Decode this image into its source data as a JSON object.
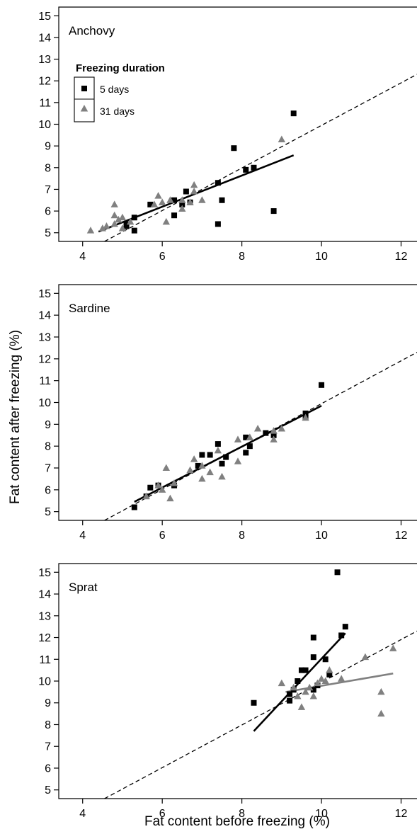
{
  "chart_data": {
    "type": "scatter",
    "ylabel": "Fat content after freezing (%)",
    "xlabel": "Fat content before freezing (%)",
    "xlim": [
      3.4,
      12.4
    ],
    "ylim": [
      4.6,
      15.4
    ],
    "x_ticks": [
      4,
      6,
      8,
      10,
      12
    ],
    "y_ticks": [
      5,
      6,
      7,
      8,
      9,
      10,
      11,
      12,
      13,
      14,
      15
    ],
    "colors": {
      "day5": "#000000",
      "day31": "#808080"
    },
    "legend": {
      "title": "Freezing duration",
      "entries": [
        {
          "label": "5 days",
          "marker": "square",
          "color": "#000000"
        },
        {
          "label": "31 days",
          "marker": "triangle",
          "color": "#808080"
        }
      ]
    },
    "panels": [
      {
        "title": "Anchovy",
        "series": [
          {
            "name": "5 days",
            "points": [
              [
                5.1,
                5.4
              ],
              [
                5.1,
                5.3
              ],
              [
                5.3,
                5.7
              ],
              [
                5.3,
                5.1
              ],
              [
                5.7,
                6.3
              ],
              [
                6.3,
                5.8
              ],
              [
                6.3,
                6.5
              ],
              [
                6.5,
                6.3
              ],
              [
                6.6,
                6.9
              ],
              [
                6.7,
                6.4
              ],
              [
                7.4,
                7.3
              ],
              [
                7.4,
                5.4
              ],
              [
                7.5,
                6.5
              ],
              [
                7.8,
                8.9
              ],
              [
                8.1,
                7.9
              ],
              [
                8.3,
                8.0
              ],
              [
                8.8,
                6.0
              ],
              [
                9.3,
                10.5
              ]
            ]
          },
          {
            "name": "31 days",
            "points": [
              [
                4.2,
                5.1
              ],
              [
                4.5,
                5.2
              ],
              [
                4.6,
                5.3
              ],
              [
                4.8,
                5.4
              ],
              [
                4.8,
                5.8
              ],
              [
                4.8,
                6.3
              ],
              [
                4.9,
                5.6
              ],
              [
                5.0,
                5.7
              ],
              [
                5.0,
                5.2
              ],
              [
                5.2,
                5.5
              ],
              [
                5.8,
                6.3
              ],
              [
                5.9,
                6.7
              ],
              [
                6.0,
                6.4
              ],
              [
                6.1,
                5.5
              ],
              [
                6.2,
                6.5
              ],
              [
                6.5,
                6.1
              ],
              [
                6.5,
                6.5
              ],
              [
                6.7,
                6.4
              ],
              [
                6.8,
                6.9
              ],
              [
                6.8,
                7.2
              ],
              [
                7.0,
                6.5
              ],
              [
                9.0,
                9.3
              ]
            ]
          }
        ],
        "fit_lines": [
          {
            "series": "5 days",
            "x": [
              4.4,
              9.3
            ],
            "y": [
              5.05,
              8.57
            ]
          }
        ],
        "reference_line": {
          "x": [
            4.55,
            12.4
          ],
          "y": [
            4.6,
            12.3
          ]
        }
      },
      {
        "title": "Sardine",
        "series": [
          {
            "name": "5 days",
            "points": [
              [
                5.3,
                5.2
              ],
              [
                5.6,
                5.7
              ],
              [
                5.7,
                6.1
              ],
              [
                5.9,
                6.2
              ],
              [
                6.3,
                6.2
              ],
              [
                6.9,
                7.1
              ],
              [
                7.0,
                7.6
              ],
              [
                7.2,
                7.6
              ],
              [
                7.4,
                8.1
              ],
              [
                7.5,
                7.2
              ],
              [
                7.6,
                7.5
              ],
              [
                8.1,
                7.7
              ],
              [
                8.1,
                8.4
              ],
              [
                8.2,
                8.0
              ],
              [
                8.6,
                8.6
              ],
              [
                8.8,
                8.5
              ],
              [
                9.6,
                9.3
              ],
              [
                9.6,
                9.5
              ],
              [
                10.0,
                10.8
              ]
            ]
          },
          {
            "name": "31 days",
            "points": [
              [
                5.6,
                5.7
              ],
              [
                5.9,
                6.2
              ],
              [
                6.0,
                6.0
              ],
              [
                6.1,
                7.0
              ],
              [
                6.2,
                5.6
              ],
              [
                6.3,
                6.3
              ],
              [
                6.7,
                6.9
              ],
              [
                6.8,
                7.4
              ],
              [
                7.0,
                6.5
              ],
              [
                7.0,
                7.1
              ],
              [
                7.2,
                6.8
              ],
              [
                7.4,
                7.8
              ],
              [
                7.5,
                6.6
              ],
              [
                7.9,
                7.3
              ],
              [
                7.9,
                8.3
              ],
              [
                8.2,
                8.4
              ],
              [
                8.4,
                8.8
              ],
              [
                8.8,
                8.3
              ],
              [
                8.8,
                8.7
              ],
              [
                9.0,
                8.8
              ],
              [
                9.6,
                9.3
              ]
            ]
          }
        ],
        "fit_lines": [
          {
            "series": "5 days",
            "x": [
              5.3,
              10.0
            ],
            "y": [
              5.45,
              9.85
            ]
          }
        ],
        "reference_line": {
          "x": [
            4.55,
            12.4
          ],
          "y": [
            4.6,
            12.3
          ]
        }
      },
      {
        "title": "Sprat",
        "series": [
          {
            "name": "5 days",
            "points": [
              [
                8.3,
                9.0
              ],
              [
                9.2,
                9.1
              ],
              [
                9.2,
                9.4
              ],
              [
                9.3,
                9.6
              ],
              [
                9.4,
                10.0
              ],
              [
                9.5,
                10.5
              ],
              [
                9.6,
                10.5
              ],
              [
                9.8,
                11.1
              ],
              [
                9.8,
                12.0
              ],
              [
                9.8,
                9.6
              ],
              [
                9.9,
                9.8
              ],
              [
                10.1,
                11.0
              ],
              [
                10.2,
                10.3
              ],
              [
                10.4,
                15.0
              ],
              [
                10.5,
                12.1
              ],
              [
                10.6,
                12.5
              ]
            ]
          },
          {
            "name": "31 days",
            "points": [
              [
                9.0,
                9.9
              ],
              [
                9.3,
                9.7
              ],
              [
                9.4,
                9.3
              ],
              [
                9.5,
                8.8
              ],
              [
                9.6,
                9.5
              ],
              [
                9.7,
                9.7
              ],
              [
                9.8,
                9.3
              ],
              [
                9.9,
                9.9
              ],
              [
                10.0,
                10.1
              ],
              [
                10.1,
                10.0
              ],
              [
                10.2,
                10.5
              ],
              [
                10.5,
                10.1
              ],
              [
                11.1,
                11.1
              ],
              [
                11.5,
                9.5
              ],
              [
                11.5,
                8.5
              ],
              [
                11.8,
                11.5
              ]
            ]
          }
        ],
        "fit_lines": [
          {
            "series": "5 days",
            "x": [
              8.3,
              10.6
            ],
            "y": [
              7.7,
              12.2
            ]
          },
          {
            "series": "31 days",
            "x": [
              9.1,
              11.8
            ],
            "y": [
              9.5,
              10.35
            ]
          }
        ],
        "reference_line": {
          "x": [
            4.55,
            12.4
          ],
          "y": [
            4.6,
            12.3
          ]
        }
      }
    ]
  }
}
